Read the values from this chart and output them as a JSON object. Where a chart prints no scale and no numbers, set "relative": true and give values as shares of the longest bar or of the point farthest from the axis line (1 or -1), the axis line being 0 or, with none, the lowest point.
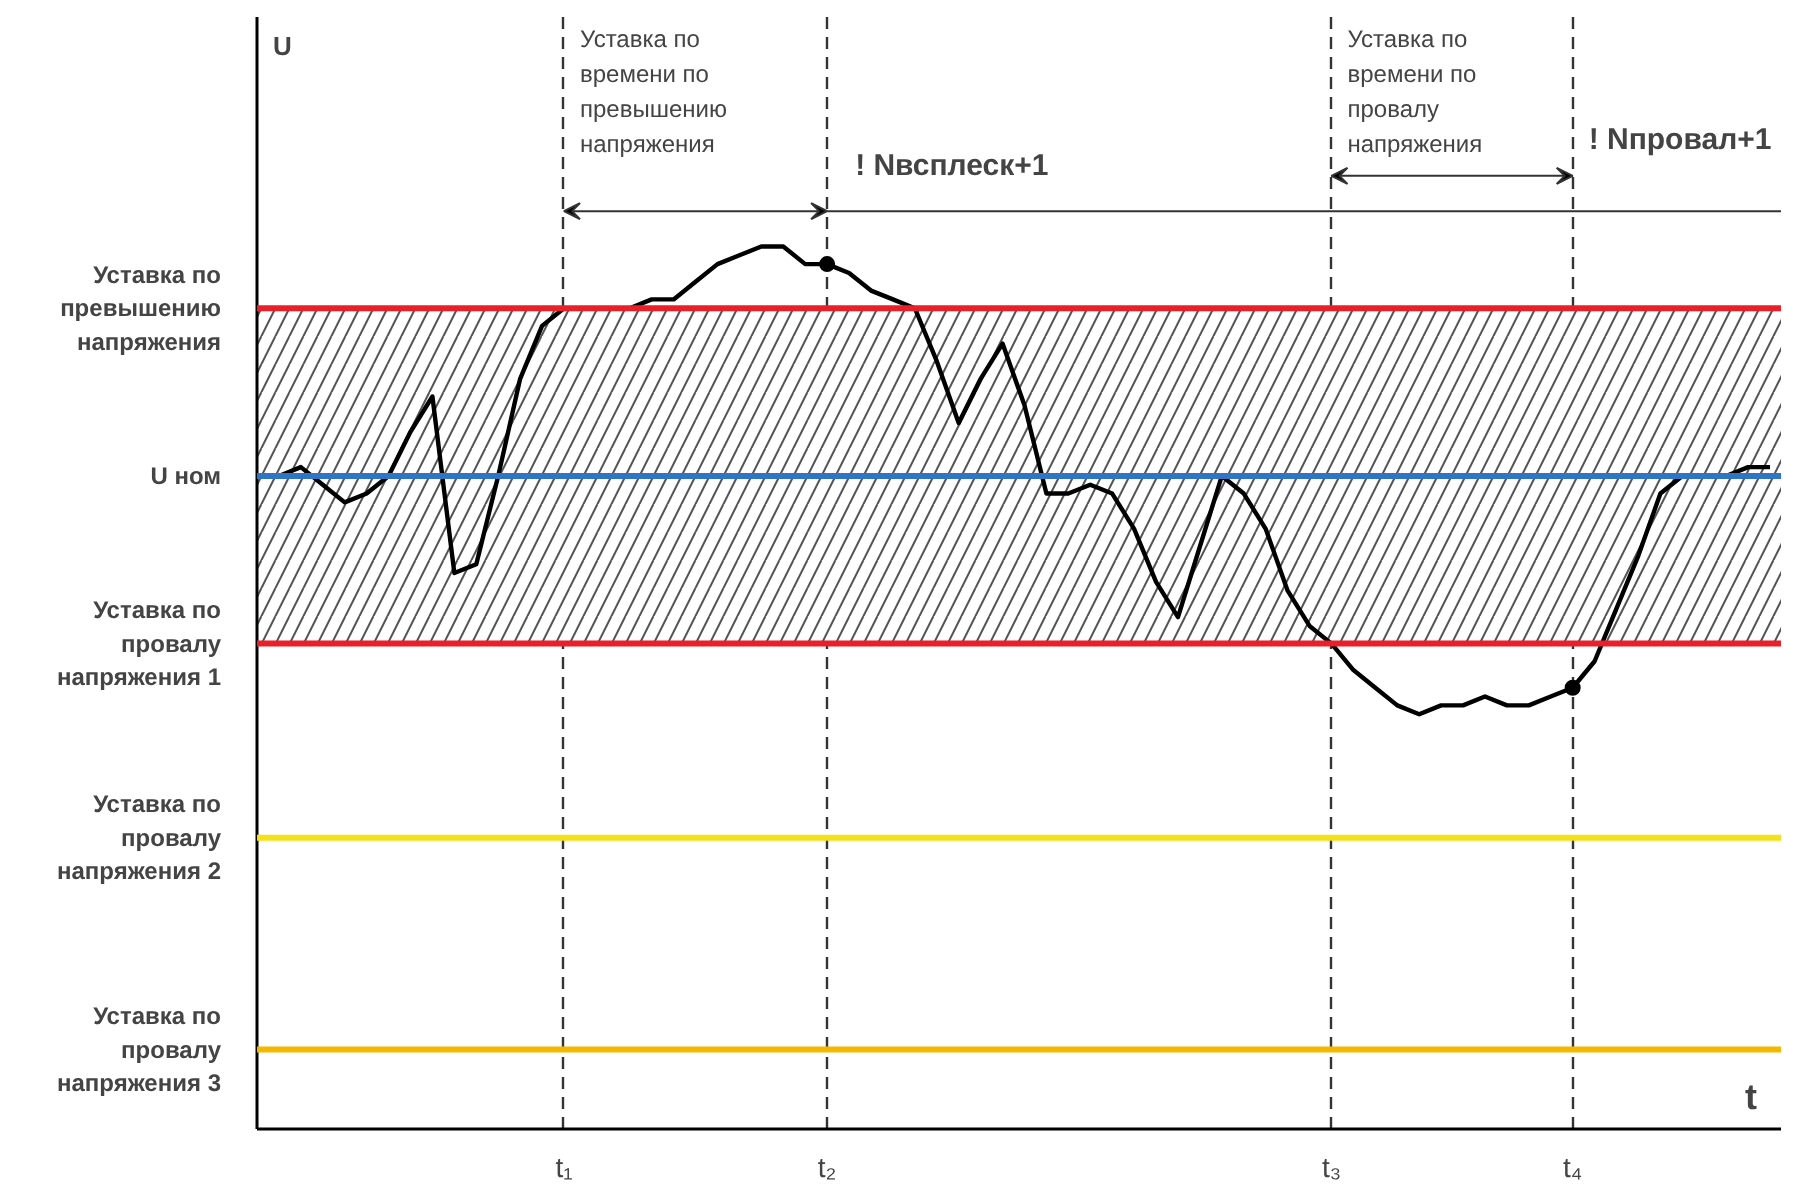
{
  "chart_data": {
    "type": "line",
    "relative": true,
    "xlabel": "t",
    "ylabel": "U",
    "categories": [
      null,
      null,
      null,
      null,
      null,
      null,
      null,
      null,
      null,
      null,
      null,
      null,
      null,
      null,
      "t₁",
      null,
      null,
      null,
      null,
      null,
      null,
      null,
      null,
      null,
      null,
      null,
      "t₂",
      null,
      null,
      null,
      null,
      null,
      null,
      null,
      null,
      null,
      null,
      null,
      null,
      null,
      null,
      null,
      null,
      null,
      null,
      null,
      null,
      null,
      null,
      "t₃",
      null,
      null,
      null,
      null,
      null,
      null,
      null,
      null,
      null,
      null,
      "t₄",
      null,
      null,
      null,
      null,
      null,
      null,
      null,
      null,
      null
    ],
    "ylim": [
      0,
      1.26
    ],
    "grid": "x",
    "line_style": "solid",
    "series": [
      {
        "color": "#000000",
        "values": [
          0.74,
          0.74,
          0.75,
          0.73,
          0.71,
          0.72,
          0.74,
          0.79,
          0.83,
          0.63,
          0.64,
          0.74,
          0.85,
          0.91,
          0.93,
          0.93,
          0.93,
          0.93,
          0.94,
          0.94,
          0.96,
          0.98,
          0.99,
          1.0,
          1.0,
          0.98,
          0.98,
          0.97,
          0.95,
          0.94,
          0.93,
          0.87,
          0.8,
          0.85,
          0.89,
          0.82,
          0.72,
          0.72,
          0.73,
          0.72,
          0.68,
          0.62,
          0.58,
          0.66,
          0.74,
          0.72,
          0.68,
          0.61,
          0.57,
          0.55,
          0.52,
          0.5,
          0.48,
          0.47,
          0.48,
          0.48,
          0.49,
          0.48,
          0.48,
          0.49,
          0.5,
          0.53,
          0.59,
          0.65,
          0.72,
          0.74,
          0.74,
          0.74,
          0.75,
          0.75
        ]
      },
      {
        "type": "scatter",
        "color": "#000000",
        "marker": "circle",
        "x": [
          "t₂",
          "t₄"
        ],
        "values": [
          0.98,
          0.5
        ]
      }
    ],
    "ref_lines": [
      {
        "axis": "y",
        "value": 0.93,
        "label": "Уставка по превышению напряжения",
        "color": "#e8202a"
      },
      {
        "axis": "y",
        "value": 0.74,
        "label": "U ном",
        "color": "#2e75c6"
      },
      {
        "axis": "y",
        "value": 0.55,
        "label": "Уставка по провалу напряжения 1",
        "color": "#e8202a"
      },
      {
        "axis": "y",
        "value": 0.33,
        "label": "Уставка по провалу напряжения 2",
        "color": "#f5e11a"
      },
      {
        "axis": "y",
        "value": 0.09,
        "label": "Уставка по провалу напряжения 3",
        "color": "#f5b800"
      }
    ],
    "bands": [
      {
        "axis": "y",
        "from": 0.55,
        "to": 0.93,
        "color": "#555555"
      }
    ],
    "annotations": [
      "Уставка по времени по превышению напряжения",
      "Уставка по времени по провалу напряжения",
      "! Nвсплеск+1",
      "! Nпровал+1"
    ]
  }
}
